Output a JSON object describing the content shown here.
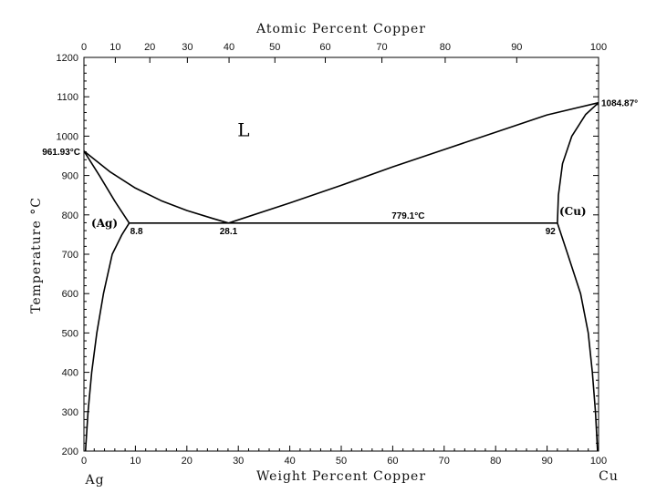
{
  "chart_data": {
    "type": "line",
    "title": "",
    "xlabel_bottom": "Weight Percent Copper",
    "xlabel_top": "Atomic Percent Copper",
    "ylabel": "Temperature °C",
    "xlim": [
      0,
      100
    ],
    "ylim": [
      200,
      1200
    ],
    "x_ticks_bottom": [
      0,
      10,
      20,
      30,
      40,
      50,
      60,
      70,
      80,
      90,
      100
    ],
    "y_ticks": [
      200,
      300,
      400,
      500,
      600,
      700,
      800,
      900,
      1000,
      1100,
      1200
    ],
    "x_ticks_top": [
      {
        "label": "0",
        "wt": 0
      },
      {
        "label": "10",
        "wt": 6.1
      },
      {
        "label": "20",
        "wt": 12.8
      },
      {
        "label": "30",
        "wt": 20.1
      },
      {
        "label": "40",
        "wt": 28.2
      },
      {
        "label": "50",
        "wt": 37.1
      },
      {
        "label": "60",
        "wt": 46.9
      },
      {
        "label": "70",
        "wt": 57.9
      },
      {
        "label": "80",
        "wt": 70.2
      },
      {
        "label": "90",
        "wt": 84.1
      },
      {
        "label": "100",
        "wt": 100
      }
    ],
    "end_labels": {
      "left": "Ag",
      "right": "Cu"
    },
    "series": [
      {
        "id": "liquidus-ag",
        "points": [
          [
            0,
            961.93
          ],
          [
            5,
            910
          ],
          [
            10,
            868
          ],
          [
            15,
            836
          ],
          [
            20,
            811
          ],
          [
            25,
            791
          ],
          [
            28.1,
            779.1
          ]
        ]
      },
      {
        "id": "liquidus-cu",
        "points": [
          [
            28.1,
            779.1
          ],
          [
            40,
            830
          ],
          [
            50,
            875
          ],
          [
            60,
            922
          ],
          [
            70,
            966
          ],
          [
            80,
            1010
          ],
          [
            90,
            1054
          ],
          [
            100,
            1084.87
          ]
        ]
      },
      {
        "id": "solidus-ag",
        "points": [
          [
            0,
            961.93
          ],
          [
            3,
            900
          ],
          [
            6,
            835
          ],
          [
            8.8,
            779.1
          ]
        ]
      },
      {
        "id": "solidus-cu",
        "points": [
          [
            92,
            779.1
          ],
          [
            92.2,
            850
          ],
          [
            93,
            930
          ],
          [
            94.8,
            1000
          ],
          [
            97.5,
            1055
          ],
          [
            100,
            1084.87
          ]
        ]
      },
      {
        "id": "eutectic",
        "points": [
          [
            8.8,
            779.1
          ],
          [
            92,
            779.1
          ]
        ]
      },
      {
        "id": "solvus-ag",
        "points": [
          [
            8.8,
            779.1
          ],
          [
            7.4,
            750
          ],
          [
            5.5,
            700
          ],
          [
            3.8,
            600
          ],
          [
            2.5,
            500
          ],
          [
            1.5,
            400
          ],
          [
            0.8,
            300
          ],
          [
            0.3,
            200
          ]
        ]
      },
      {
        "id": "solvus-cu",
        "points": [
          [
            92,
            779.1
          ],
          [
            94,
            700
          ],
          [
            96.5,
            600
          ],
          [
            98,
            500
          ],
          [
            98.8,
            400
          ],
          [
            99.4,
            300
          ],
          [
            99.8,
            200
          ]
        ]
      }
    ],
    "annotations": [
      {
        "id": "ag-melting",
        "text": "961.93°C",
        "x": 0,
        "y": 961.93,
        "anchor": "end",
        "dx": -4,
        "dy": 4
      },
      {
        "id": "cu-melting",
        "text": "1084.87°",
        "x": 100,
        "y": 1084.87,
        "anchor": "start",
        "dx": 3,
        "dy": 4
      },
      {
        "id": "eutectic-temp",
        "text": "779.1°C",
        "x": 63,
        "y": 779.1,
        "anchor": "middle",
        "dx": 0,
        "dy": -5
      },
      {
        "id": "comp-ag",
        "text": "8.8",
        "x": 8.8,
        "y": 779.1,
        "anchor": "start",
        "dx": 1,
        "dy": 12
      },
      {
        "id": "comp-eutectic",
        "text": "28.1",
        "x": 28.1,
        "y": 779.1,
        "anchor": "middle",
        "dx": 0,
        "dy": 12
      },
      {
        "id": "comp-cu",
        "text": "92",
        "x": 92,
        "y": 779.1,
        "anchor": "end",
        "dx": -2,
        "dy": 12
      }
    ],
    "phase_labels": [
      {
        "id": "liquid",
        "text": "L",
        "x": 31,
        "y": 1000,
        "size": "large"
      },
      {
        "id": "alpha-ag",
        "text": "(Ag)",
        "x": 4,
        "y": 770,
        "size": "normal"
      },
      {
        "id": "beta-cu",
        "text": "(Cu)",
        "x": 95,
        "y": 800,
        "size": "normal"
      }
    ]
  }
}
